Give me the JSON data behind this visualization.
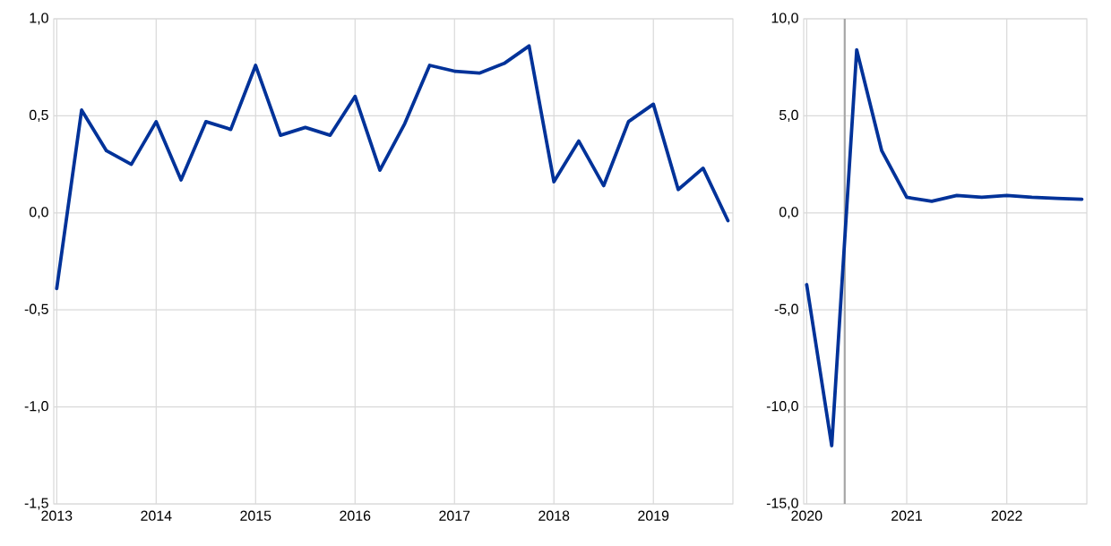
{
  "chart_data": [
    {
      "type": "line",
      "x": [
        2013.0,
        2013.25,
        2013.5,
        2013.75,
        2014.0,
        2014.25,
        2014.5,
        2014.75,
        2015.0,
        2015.25,
        2015.5,
        2015.75,
        2016.0,
        2016.25,
        2016.5,
        2016.75,
        2017.0,
        2017.25,
        2017.5,
        2017.75,
        2018.0,
        2018.25,
        2018.5,
        2018.75,
        2019.0,
        2019.25,
        2019.5,
        2019.75
      ],
      "series": [
        {
          "color": "#003299",
          "values": [
            -0.39,
            0.53,
            0.32,
            0.25,
            0.47,
            0.17,
            0.47,
            0.43,
            0.76,
            0.4,
            0.44,
            0.4,
            0.6,
            0.22,
            0.46,
            0.76,
            0.73,
            0.72,
            0.77,
            0.86,
            0.16,
            0.37,
            0.14,
            0.47,
            0.56,
            0.12,
            0.23,
            -0.04
          ]
        }
      ],
      "xlim": [
        2012.97,
        2019.8
      ],
      "ylim": [
        -1.5,
        1.0
      ],
      "xticks": [
        2013,
        2014,
        2015,
        2016,
        2017,
        2018,
        2019
      ],
      "yticks": [
        {
          "value": -1.5,
          "label": "-1,5"
        },
        {
          "value": -1.0,
          "label": "-1,0"
        },
        {
          "value": -0.5,
          "label": "-0,5"
        },
        {
          "value": 0,
          "label": "0,0"
        },
        {
          "value": 0.5,
          "label": "0,5"
        },
        {
          "value": 1.0,
          "label": "1,0"
        }
      ],
      "grid": true
    },
    {
      "type": "line",
      "x": [
        2020.0,
        2020.25,
        2020.5,
        2020.75,
        2021.0,
        2021.25,
        2021.5,
        2021.75,
        2022.0,
        2022.25,
        2022.5,
        2022.75
      ],
      "series": [
        {
          "color": "#003299",
          "values": [
            -3.7,
            -12.0,
            8.4,
            3.2,
            0.8,
            0.6,
            0.9,
            0.8,
            0.9,
            0.8,
            0.75,
            0.7
          ]
        }
      ],
      "xlim": [
        2019.97,
        2022.8
      ],
      "ylim": [
        -15,
        10
      ],
      "xticks": [
        2020,
        2021,
        2022
      ],
      "yticks": [
        {
          "value": -15,
          "label": "-15,0"
        },
        {
          "value": -10,
          "label": "-10,0"
        },
        {
          "value": -5,
          "label": "-5,0"
        },
        {
          "value": 0,
          "label": "0,0"
        },
        {
          "value": 5,
          "label": "5,0"
        },
        {
          "value": 10,
          "label": "10,0"
        }
      ],
      "ref_lines": [
        {
          "axis": "x",
          "value": 2020.38,
          "color": "#a6a6a6"
        }
      ],
      "grid": true
    }
  ]
}
